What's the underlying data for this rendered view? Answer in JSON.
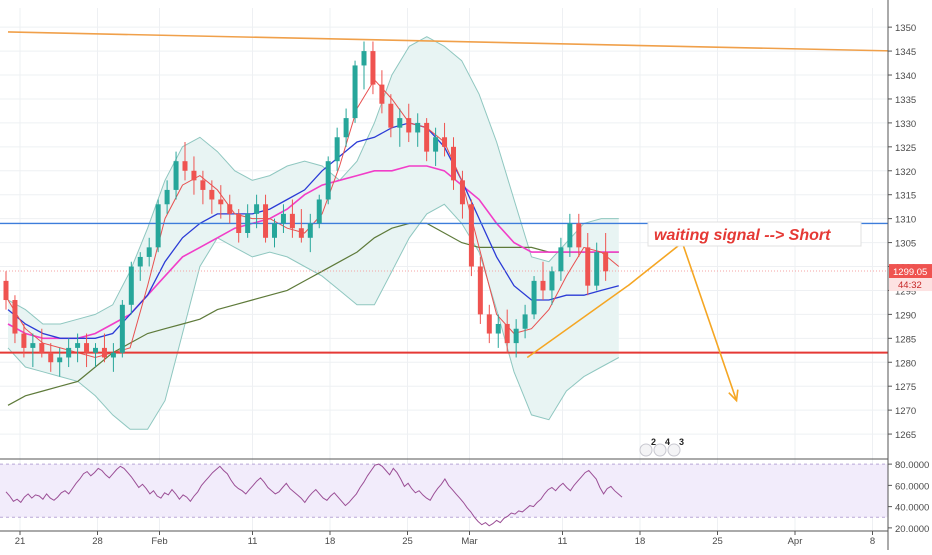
{
  "chart_data": [
    {
      "type": "candlestick",
      "title": "",
      "ylim": [
        1260,
        1354
      ],
      "y_ticks": [
        1265,
        1270,
        1275,
        1280,
        1285,
        1290,
        1295,
        1300,
        1305,
        1310,
        1315,
        1320,
        1325,
        1330,
        1335,
        1340,
        1345,
        1350
      ],
      "x_tick_labels": [
        {
          "label": "21",
          "bar": 0
        },
        {
          "label": "28",
          "bar": 5
        },
        {
          "label": "Feb",
          "bar": 9
        },
        {
          "label": "11",
          "bar": 15
        },
        {
          "label": "18",
          "bar": 20
        },
        {
          "label": "25",
          "bar": 25
        },
        {
          "label": "Mar",
          "bar": 29
        },
        {
          "label": "11",
          "bar": 35
        },
        {
          "label": "18",
          "bar": 40
        },
        {
          "label": "25",
          "bar": 45
        },
        {
          "label": "Apr",
          "bar": 50
        },
        {
          "label": "8",
          "bar": 55
        }
      ],
      "grid": true,
      "colors": {
        "up": "#26a69a",
        "down": "#ef5350",
        "bb_fill": "#e8f4f3",
        "bb_line": "#8fc7c0",
        "ma_fast": "#e85050",
        "ma_mid": "#2b3bd6",
        "ma_slow": "#f13dc8",
        "ma_long": "#5e7a3a",
        "resistance_line": "#f0a04a",
        "blue_level": "#3d7ddb",
        "red_level": "#e53935",
        "forecast": "#f5a623",
        "annotation_text": "#e53935",
        "price_label_bg": "#ef5350"
      },
      "candles": [
        [
          1297,
          1299,
          1291,
          1293
        ],
        [
          1293,
          1294,
          1284,
          1286
        ],
        [
          1286,
          1288,
          1281,
          1283
        ],
        [
          1283,
          1286,
          1279,
          1284
        ],
        [
          1284,
          1287,
          1281,
          1282
        ],
        [
          1282,
          1284,
          1278,
          1280
        ],
        [
          1280,
          1283,
          1277,
          1281
        ],
        [
          1281,
          1285,
          1279,
          1283
        ],
        [
          1283,
          1286,
          1280,
          1284
        ],
        [
          1284,
          1286,
          1279,
          1282
        ],
        [
          1282,
          1284,
          1279,
          1283
        ],
        [
          1283,
          1286,
          1280,
          1281
        ],
        [
          1281,
          1284,
          1278,
          1282
        ],
        [
          1282,
          1293,
          1281,
          1292
        ],
        [
          1292,
          1301,
          1290,
          1300
        ],
        [
          1300,
          1303,
          1297,
          1302
        ],
        [
          1302,
          1306,
          1300,
          1304
        ],
        [
          1304,
          1314,
          1303,
          1313
        ],
        [
          1313,
          1318,
          1311,
          1316
        ],
        [
          1316,
          1324,
          1314,
          1322
        ],
        [
          1322,
          1326,
          1318,
          1320
        ],
        [
          1320,
          1323,
          1315,
          1318
        ],
        [
          1318,
          1320,
          1313,
          1316
        ],
        [
          1316,
          1318,
          1311,
          1314
        ],
        [
          1314,
          1317,
          1310,
          1313
        ],
        [
          1313,
          1315,
          1309,
          1311
        ],
        [
          1311,
          1312,
          1305,
          1307
        ],
        [
          1307,
          1313,
          1306,
          1311
        ],
        [
          1311,
          1315,
          1308,
          1313
        ],
        [
          1313,
          1315,
          1305,
          1306
        ],
        [
          1306,
          1310,
          1304,
          1309
        ],
        [
          1309,
          1313,
          1307,
          1311
        ],
        [
          1311,
          1314,
          1306,
          1308
        ],
        [
          1308,
          1312,
          1305,
          1306
        ],
        [
          1306,
          1311,
          1303,
          1309
        ],
        [
          1309,
          1315,
          1308,
          1314
        ],
        [
          1314,
          1323,
          1313,
          1322
        ],
        [
          1322,
          1329,
          1320,
          1327
        ],
        [
          1327,
          1333,
          1325,
          1331
        ],
        [
          1331,
          1343,
          1330,
          1342
        ],
        [
          1342,
          1347,
          1337,
          1345
        ],
        [
          1345,
          1347,
          1336,
          1338
        ],
        [
          1338,
          1341,
          1332,
          1334
        ],
        [
          1334,
          1336,
          1327,
          1329
        ],
        [
          1329,
          1333,
          1325,
          1331
        ],
        [
          1331,
          1334,
          1326,
          1328
        ],
        [
          1328,
          1332,
          1325,
          1330
        ],
        [
          1330,
          1331,
          1322,
          1324
        ],
        [
          1324,
          1329,
          1321,
          1327
        ],
        [
          1327,
          1330,
          1323,
          1325
        ],
        [
          1325,
          1327,
          1316,
          1318
        ],
        [
          1318,
          1320,
          1310,
          1313
        ],
        [
          1313,
          1314,
          1298,
          1300
        ],
        [
          1300,
          1302,
          1288,
          1290
        ],
        [
          1290,
          1292,
          1284,
          1286
        ],
        [
          1286,
          1290,
          1283,
          1288
        ],
        [
          1288,
          1291,
          1282,
          1284
        ],
        [
          1284,
          1289,
          1281,
          1287
        ],
        [
          1287,
          1292,
          1285,
          1290
        ],
        [
          1290,
          1298,
          1289,
          1297
        ],
        [
          1297,
          1301,
          1293,
          1295
        ],
        [
          1295,
          1300,
          1292,
          1299
        ],
        [
          1299,
          1306,
          1297,
          1304
        ],
        [
          1304,
          1311,
          1302,
          1309
        ],
        [
          1309,
          1311,
          1302,
          1304
        ],
        [
          1304,
          1307,
          1294,
          1296
        ],
        [
          1296,
          1305,
          1295,
          1303
        ],
        [
          1303,
          1307,
          1297,
          1299
        ]
      ],
      "bb_upper": [
        1293,
        1291,
        1288,
        1288,
        1289,
        1290,
        1292,
        1299,
        1308,
        1318,
        1325,
        1327,
        1324,
        1320,
        1318,
        1319,
        1321,
        1322,
        1321,
        1318,
        1322,
        1330,
        1340,
        1346,
        1348,
        1346,
        1343,
        1336,
        1326,
        1314,
        1302,
        1301,
        1305,
        1309,
        1310,
        1310
      ],
      "bb_lower": [
        1283,
        1279,
        1278,
        1277,
        1276,
        1273,
        1269,
        1266,
        1266,
        1272,
        1286,
        1300,
        1306,
        1304,
        1302,
        1303,
        1302,
        1300,
        1298,
        1295,
        1292,
        1292,
        1299,
        1306,
        1311,
        1313,
        1309,
        1303,
        1291,
        1278,
        1269,
        1268,
        1274,
        1277,
        1279,
        1281
      ],
      "ma_fast": [
        1293,
        1287,
        1284,
        1283,
        1282,
        1281,
        1282,
        1283,
        1296,
        1310,
        1317,
        1319,
        1316,
        1311,
        1310,
        1310,
        1308,
        1307,
        1311,
        1321,
        1333,
        1339,
        1335,
        1330,
        1329,
        1326,
        1318,
        1304,
        1290,
        1286,
        1287,
        1291,
        1298,
        1304,
        1303,
        1300
      ],
      "ma_mid": [
        1291,
        1288,
        1286,
        1285,
        1285,
        1285,
        1286,
        1290,
        1294,
        1301,
        1306,
        1309,
        1311,
        1311,
        1311,
        1312,
        1314,
        1316,
        1320,
        1323,
        1326,
        1327,
        1329,
        1330,
        1329,
        1325,
        1318,
        1310,
        1302,
        1296,
        1293,
        1293,
        1294,
        1294,
        1295,
        1296
      ],
      "ma_slow": [
        1288,
        1286,
        1285,
        1285,
        1285,
        1286,
        1288,
        1290,
        1294,
        1298,
        1302,
        1304,
        1306,
        1308,
        1309,
        1310,
        1312,
        1315,
        1317,
        1318,
        1319,
        1320,
        1320,
        1321,
        1321,
        1320,
        1317,
        1314,
        1309,
        1305,
        1303,
        1303,
        1303,
        1303,
        1303,
        1303
      ],
      "ma_long": [
        1271,
        1273,
        1274,
        1275,
        1276,
        1279,
        1282,
        1284,
        1286,
        1287,
        1288,
        1289,
        1291,
        1292,
        1293,
        1294,
        1295,
        1297,
        1299,
        1301,
        1303,
        1306,
        1308,
        1309,
        1309,
        1307,
        1305,
        1304,
        1304,
        1304,
        1304,
        1303,
        1303,
        1303,
        1303,
        1303
      ],
      "levels": [
        {
          "name": "blue_level",
          "y": 1309
        },
        {
          "name": "red_level",
          "y": 1282
        },
        {
          "name": "current_price",
          "y": 1299.05
        }
      ],
      "resistance_line": {
        "from": [
          0,
          1349
        ],
        "to": [
          57.5,
          1345
        ]
      },
      "uptrend_line": {
        "from": [
          33.5,
          1281
        ],
        "to": [
          40,
          1296
        ]
      },
      "forecast_path": [
        [
          40,
          1296
        ],
        [
          43.5,
          1305
        ],
        [
          47,
          1272
        ]
      ],
      "annotation": "waiting signal --> Short",
      "price_label": "1299.05",
      "countdown_label": "44:32",
      "event_markers": [
        "2",
        "4",
        "3"
      ]
    },
    {
      "type": "line",
      "title": "",
      "ylim": [
        18,
        82
      ],
      "y_ticks": [
        20,
        40,
        60,
        80
      ],
      "y_tick_labels": [
        "20.0000",
        "40.0000",
        "60.0000",
        "80.0000"
      ],
      "band": [
        30,
        80
      ],
      "grid": true,
      "colors": {
        "line": "#9b4f96",
        "band": "#f2ecfb",
        "band_edge": "#b9a7d6"
      },
      "values": [
        54,
        50,
        45,
        47,
        44,
        49,
        52,
        48,
        51,
        50,
        47,
        52,
        48,
        46,
        49,
        53,
        55,
        52,
        57,
        62,
        66,
        71,
        73,
        69,
        72,
        76,
        74,
        70,
        67,
        71,
        75,
        78,
        76,
        72,
        68,
        63,
        58,
        61,
        57,
        52,
        55,
        50,
        48,
        53,
        51,
        56,
        52,
        47,
        51,
        49,
        45,
        50,
        54,
        60,
        64,
        68,
        72,
        75,
        78,
        74,
        71,
        65,
        60,
        57,
        55,
        52,
        56,
        60,
        64,
        67,
        63,
        58,
        55,
        52,
        54,
        58,
        62,
        57,
        54,
        51,
        48,
        44,
        49,
        53,
        56,
        52,
        48,
        46,
        50,
        53,
        49,
        45,
        41,
        44,
        48,
        52,
        58,
        63,
        69,
        74,
        79,
        80,
        78,
        74,
        70,
        76,
        72,
        66,
        59,
        62,
        57,
        53,
        55,
        51,
        48,
        46,
        52,
        57,
        61,
        66,
        60,
        56,
        52,
        48,
        44,
        39,
        35,
        30,
        26,
        23,
        25,
        22,
        24,
        27,
        25,
        29,
        31,
        34,
        33,
        36,
        35,
        38,
        41,
        40,
        44,
        47,
        52,
        56,
        58,
        55,
        59,
        62,
        58,
        55,
        60,
        64,
        68,
        72,
        74,
        70,
        66,
        58,
        52,
        57,
        59,
        55,
        52,
        49
      ]
    }
  ]
}
